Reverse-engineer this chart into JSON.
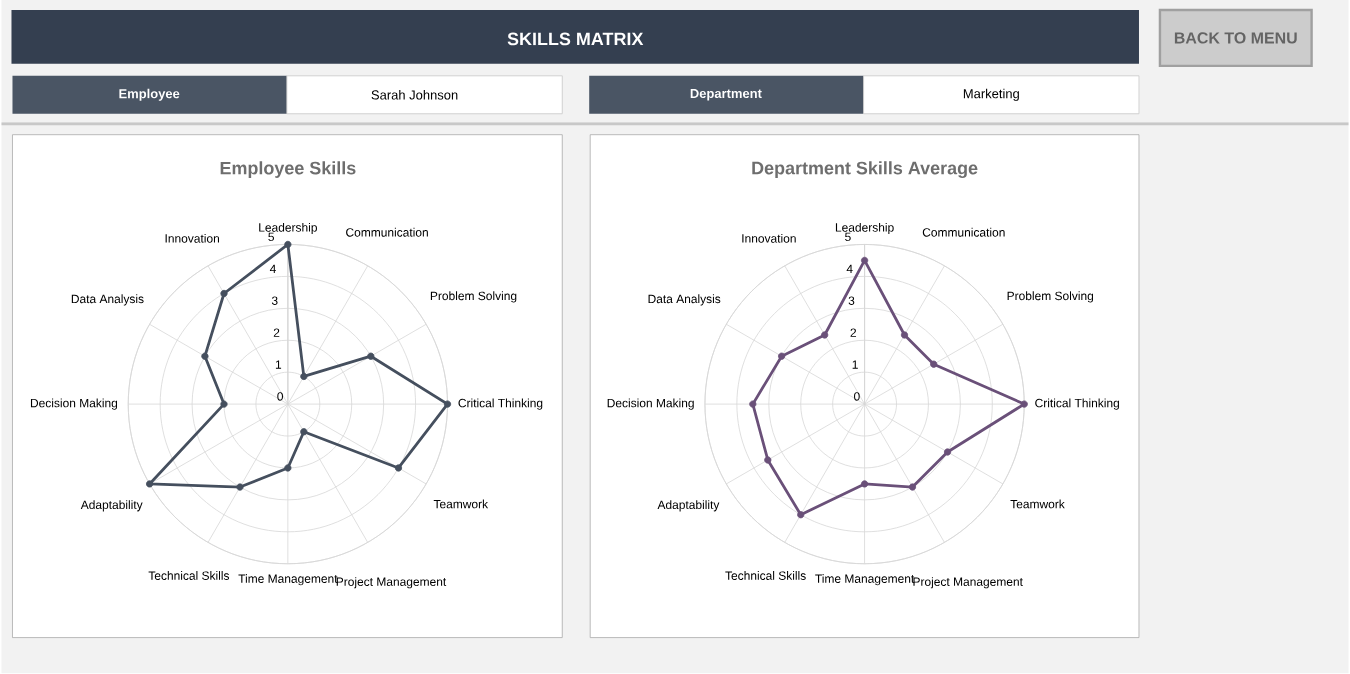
{
  "chart_data": [
    {
      "type": "other",
      "title": "SKILLS MATRIX",
      "annotations": [
        "BACK TO MENU",
        "Employee",
        "Sarah Johnson",
        "Department",
        "Marketing"
      ]
    },
    {
      "type": "radar",
      "title": "Employee Skills",
      "categories": [
        "Leadership",
        "Communication",
        "Problem Solving",
        "Critical Thinking",
        "Teamwork",
        "Project Management",
        "Time Management",
        "Technical Skills",
        "Adaptability",
        "Decision Making",
        "Data Analysis",
        "Innovation"
      ],
      "series": [
        {
          "color": "#454f5e",
          "values": [
            5,
            1,
            3,
            5,
            4,
            1,
            2,
            3,
            5,
            2,
            3,
            4
          ]
        }
      ],
      "ylim": [
        0,
        5
      ],
      "yticks": [
        0,
        1,
        2,
        3,
        4,
        5
      ],
      "grid": true,
      "marker": "circle"
    },
    {
      "type": "radar",
      "title": "Department Skills Average",
      "categories": [
        "Leadership",
        "Communication",
        "Problem Solving",
        "Critical Thinking",
        "Teamwork",
        "Project Management",
        "Time Management",
        "Technical Skills",
        "Adaptability",
        "Decision Making",
        "Data Analysis",
        "Innovation"
      ],
      "series": [
        {
          "color": "#6a5079",
          "values": [
            4.5,
            2.5,
            2.5,
            5,
            3,
            3,
            2.5,
            4,
            3.5,
            3.5,
            3,
            2.5
          ]
        }
      ],
      "ylim": [
        0,
        5
      ],
      "yticks": [
        0,
        1,
        2,
        3,
        4,
        5
      ],
      "grid": true,
      "marker": "circle"
    }
  ]
}
